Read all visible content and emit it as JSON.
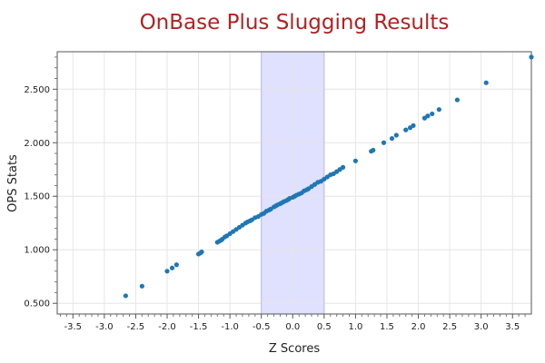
{
  "chart_data": {
    "type": "scatter",
    "title": "OnBase Plus Slugging Results",
    "xlabel": "Z Scores",
    "ylabel": "OPS Stats",
    "xlim": [
      -3.75,
      3.8
    ],
    "ylim": [
      0.4,
      2.85
    ],
    "x_ticks": [
      -3.5,
      -3.0,
      -2.5,
      -2.0,
      -1.5,
      -1.0,
      -0.5,
      0.0,
      0.5,
      1.0,
      1.5,
      2.0,
      2.5,
      3.0,
      3.5
    ],
    "x_tick_labels": [
      "-3.5",
      "-3.0",
      "-2.5",
      "-2.0",
      "-1.5",
      "-1.0",
      "-0.5",
      "0.0",
      "0.5",
      "1.0",
      "1.5",
      "2.0",
      "2.5",
      "3.0",
      "3.5"
    ],
    "y_ticks": [
      0.5,
      1.0,
      1.5,
      2.0,
      2.5
    ],
    "y_tick_labels": [
      "0.500",
      "1.000",
      "1.500",
      "2.000",
      "2.500"
    ],
    "grid": true,
    "highlight_band": {
      "x_from": -0.5,
      "x_to": 0.5,
      "color": "#e0e0ff"
    },
    "marker_color": "#1f77b4",
    "series": [
      {
        "x": [
          -2.66,
          -2.4,
          -2.0,
          -1.92,
          -1.85,
          -1.5,
          -1.47,
          -1.45,
          -1.2,
          -1.17,
          -1.14,
          -1.12,
          -1.08,
          -1.05,
          -1.0,
          -0.95,
          -0.9,
          -0.85,
          -0.8,
          -0.75,
          -0.72,
          -0.68,
          -0.65,
          -0.6,
          -0.55,
          -0.5,
          -0.46,
          -0.42,
          -0.38,
          -0.35,
          -0.3,
          -0.27,
          -0.24,
          -0.2,
          -0.17,
          -0.14,
          -0.1,
          -0.07,
          -0.05,
          0.0,
          0.03,
          0.06,
          0.1,
          0.14,
          0.18,
          0.22,
          0.25,
          0.3,
          0.35,
          0.4,
          0.45,
          0.5,
          0.55,
          0.6,
          0.65,
          0.7,
          0.75,
          0.8,
          1.0,
          1.25,
          1.28,
          1.45,
          1.58,
          1.65,
          1.8,
          1.87,
          1.92,
          2.1,
          2.15,
          2.22,
          2.33,
          2.62,
          3.08,
          3.8
        ],
        "y": [
          0.57,
          0.66,
          0.8,
          0.83,
          0.86,
          0.96,
          0.97,
          0.98,
          1.07,
          1.08,
          1.09,
          1.1,
          1.12,
          1.13,
          1.15,
          1.17,
          1.19,
          1.21,
          1.23,
          1.25,
          1.26,
          1.27,
          1.28,
          1.3,
          1.31,
          1.33,
          1.34,
          1.36,
          1.37,
          1.38,
          1.4,
          1.41,
          1.42,
          1.43,
          1.44,
          1.45,
          1.46,
          1.47,
          1.48,
          1.49,
          1.5,
          1.51,
          1.52,
          1.53,
          1.55,
          1.56,
          1.57,
          1.59,
          1.61,
          1.63,
          1.64,
          1.66,
          1.68,
          1.7,
          1.71,
          1.73,
          1.75,
          1.77,
          1.83,
          1.92,
          1.93,
          2.0,
          2.04,
          2.07,
          2.12,
          2.14,
          2.16,
          2.23,
          2.25,
          2.27,
          2.31,
          2.4,
          2.56,
          2.8
        ]
      }
    ]
  }
}
